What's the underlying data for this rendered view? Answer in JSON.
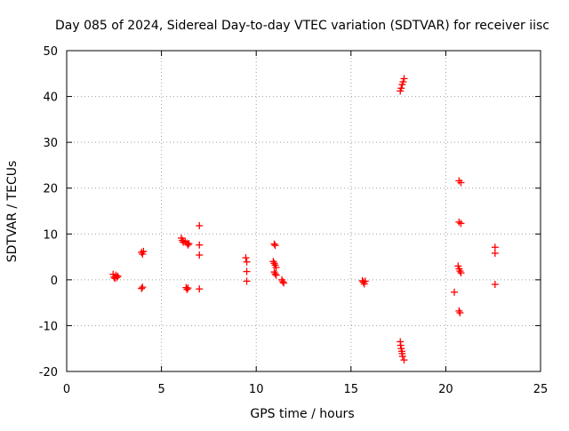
{
  "chart_data": {
    "type": "scatter",
    "title": "Day 085 of 2024, Sidereal Day-to-day VTEC variation (SDTVAR) for receiver iisc",
    "xlabel": "GPS time / hours",
    "ylabel": "SDTVAR / TECUs",
    "xlim": [
      0,
      25
    ],
    "ylim": [
      -20,
      50
    ],
    "xticks": [
      0,
      5,
      10,
      15,
      20,
      25
    ],
    "yticks": [
      -20,
      -10,
      0,
      10,
      20,
      30,
      40,
      50
    ],
    "xtick_labels": [
      "0",
      "5",
      "10",
      "15",
      "20",
      "25"
    ],
    "ytick_labels": [
      "-20",
      "-10",
      "0",
      "10",
      "20",
      "30",
      "40",
      "50"
    ],
    "grid": true,
    "marker": "plus",
    "color": "#ff0000",
    "series": [
      {
        "name": "SDTVAR",
        "points": [
          [
            2.45,
            1.2
          ],
          [
            2.5,
            0.6
          ],
          [
            2.55,
            0.3
          ],
          [
            2.6,
            1.0
          ],
          [
            2.65,
            0.5
          ],
          [
            2.7,
            0.8
          ],
          [
            3.95,
            6.0
          ],
          [
            4.0,
            5.6
          ],
          [
            4.05,
            6.2
          ],
          [
            3.95,
            -1.9
          ],
          [
            4.0,
            -1.6
          ],
          [
            6.05,
            9.1
          ],
          [
            6.1,
            8.6
          ],
          [
            6.15,
            8.2
          ],
          [
            6.25,
            8.4
          ],
          [
            6.35,
            8.0
          ],
          [
            6.4,
            7.6
          ],
          [
            6.45,
            7.9
          ],
          [
            6.3,
            -1.7
          ],
          [
            6.35,
            -2.1
          ],
          [
            6.4,
            -1.8
          ],
          [
            7.0,
            11.8
          ],
          [
            7.0,
            7.6
          ],
          [
            7.0,
            5.4
          ],
          [
            7.0,
            -2.0
          ],
          [
            9.45,
            4.8
          ],
          [
            9.5,
            3.9
          ],
          [
            9.5,
            1.8
          ],
          [
            9.5,
            -0.3
          ],
          [
            10.95,
            7.8
          ],
          [
            11.0,
            7.5
          ],
          [
            10.9,
            4.0
          ],
          [
            10.95,
            3.6
          ],
          [
            11.0,
            3.2
          ],
          [
            11.05,
            2.7
          ],
          [
            10.95,
            1.7
          ],
          [
            11.0,
            1.3
          ],
          [
            11.05,
            1.0
          ],
          [
            11.35,
            0.0
          ],
          [
            11.4,
            -0.4
          ],
          [
            11.45,
            -0.7
          ],
          [
            15.6,
            -0.2
          ],
          [
            15.65,
            -0.5
          ],
          [
            15.7,
            -0.9
          ],
          [
            15.75,
            -0.3
          ],
          [
            17.6,
            41.2
          ],
          [
            17.65,
            41.8
          ],
          [
            17.7,
            42.6
          ],
          [
            17.75,
            43.2
          ],
          [
            17.8,
            43.9
          ],
          [
            17.6,
            -13.5
          ],
          [
            17.62,
            -14.3
          ],
          [
            17.65,
            -15.0
          ],
          [
            17.68,
            -15.6
          ],
          [
            17.7,
            -16.1
          ],
          [
            17.72,
            -16.7
          ],
          [
            17.8,
            -17.5
          ],
          [
            20.7,
            21.6
          ],
          [
            20.8,
            21.2
          ],
          [
            20.7,
            12.6
          ],
          [
            20.8,
            12.3
          ],
          [
            20.65,
            3.0
          ],
          [
            20.7,
            2.4
          ],
          [
            20.75,
            1.9
          ],
          [
            20.8,
            1.5
          ],
          [
            20.45,
            -2.7
          ],
          [
            20.7,
            -6.8
          ],
          [
            20.75,
            -7.2
          ],
          [
            22.6,
            7.1
          ],
          [
            22.6,
            5.8
          ],
          [
            22.6,
            -1.0
          ]
        ]
      }
    ]
  }
}
